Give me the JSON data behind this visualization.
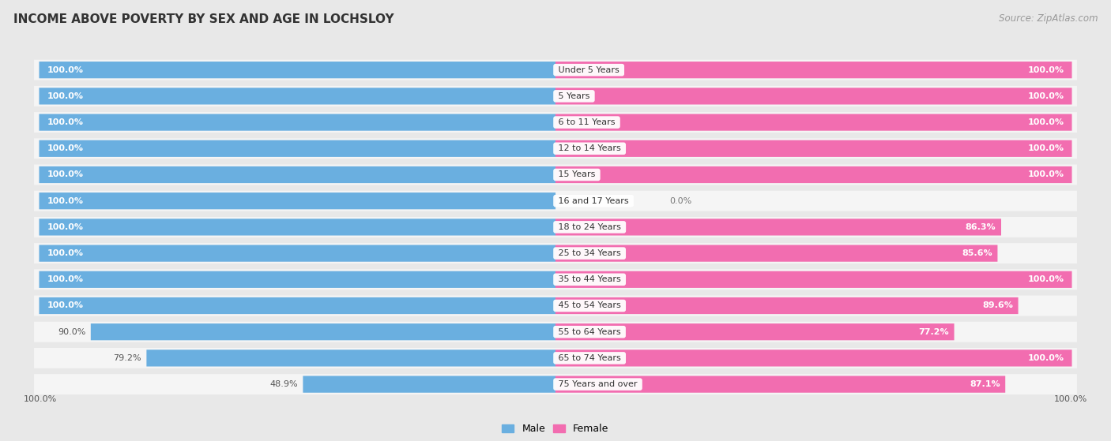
{
  "title": "INCOME ABOVE POVERTY BY SEX AND AGE IN LOCHSLOY",
  "source": "Source: ZipAtlas.com",
  "categories": [
    "Under 5 Years",
    "5 Years",
    "6 to 11 Years",
    "12 to 14 Years",
    "15 Years",
    "16 and 17 Years",
    "18 to 24 Years",
    "25 to 34 Years",
    "35 to 44 Years",
    "45 to 54 Years",
    "55 to 64 Years",
    "65 to 74 Years",
    "75 Years and over"
  ],
  "male": [
    100.0,
    100.0,
    100.0,
    100.0,
    100.0,
    100.0,
    100.0,
    100.0,
    100.0,
    100.0,
    90.0,
    79.2,
    48.9
  ],
  "female": [
    100.0,
    100.0,
    100.0,
    100.0,
    100.0,
    0.0,
    86.3,
    85.6,
    100.0,
    89.6,
    77.2,
    100.0,
    87.1
  ],
  "male_color": "#6aafe0",
  "female_color": "#f26db0",
  "female_color_light": "#f5a8cd",
  "bg_color": "#e8e8e8",
  "row_bg_color": "#f5f5f5",
  "title_fontsize": 11,
  "label_fontsize": 8,
  "source_fontsize": 8.5,
  "max_val": 100.0,
  "legend_male": "Male",
  "legend_female": "Female"
}
